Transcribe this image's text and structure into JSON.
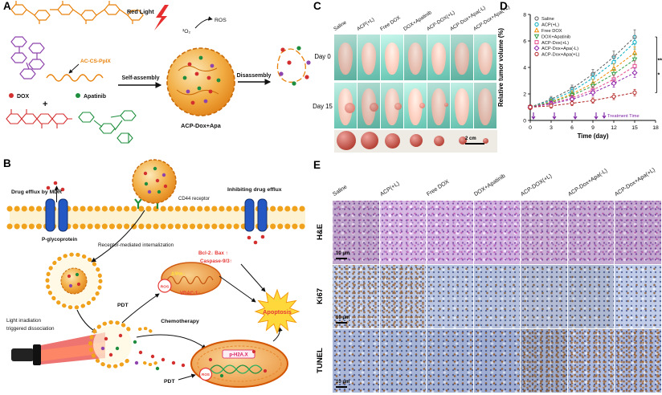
{
  "colors": {
    "polymer_orange": "#e8820c",
    "dox_red": "#d32f2f",
    "apatinib_green": "#1e8e3e",
    "purple": "#8e44ad",
    "membrane_yellow": "#f0a21d",
    "treatment_arrow_purple": "#7b1fa2"
  },
  "panelA": {
    "label": "A",
    "red_light": "Red Light",
    "singlet_oxygen": "³O₂",
    "ros": "ROS",
    "polymer_label": "AC-CS-PpIX",
    "dox_label": "DOX",
    "apatinib_label": "Apatinib",
    "plus": "+",
    "self_assembly": "Self-assembly",
    "disassembly": "Disassembly",
    "nanoparticle_label": "ACP-Dox+Apa"
  },
  "panelB": {
    "label": "B",
    "drug_efflux": "Drug efflux by MDR",
    "inhibiting_efflux": "Inhibiting drug efflux",
    "cd44": "CD44 receptor",
    "p_glycoprotein": "P-glycoprotein",
    "internalization": "Receptor-mediated internalization",
    "light_line1": "Light  irradiation",
    "light_line2": "triggered dissociation",
    "pdt": "PDT",
    "chemotherapy": "Chemotherapy",
    "ros": "ROS",
    "mito_potential": "ΔΨm↓",
    "vdac": "VDAC-1↑",
    "bcl2_bax": "Bcl-2↓ Bax ↑",
    "caspase": "Caspase-9/3↑",
    "ph2ax": "p-H2A.X",
    "apoptosis": "Apoptosis"
  },
  "panelC": {
    "label": "C",
    "groups": [
      "Saline",
      "ACP(+L)",
      "Free DOX",
      "DOX+Apatinib",
      "ACP-DOX(+L)",
      "ACP-Dox+Apa(-L)",
      "ACP-Dox+Apa(+L)"
    ],
    "rows": [
      "Day 0",
      "Day 15"
    ],
    "scale_bar": "2 cm"
  },
  "panelD": {
    "label": "D"
  },
  "chart_data": {
    "type": "line",
    "title": "",
    "xlabel": "Time (day)",
    "ylabel": "Relative tumor volume (%)",
    "xlim": [
      0,
      18
    ],
    "ylim": [
      0,
      8
    ],
    "xticks": [
      0,
      3,
      6,
      9,
      12,
      15,
      18
    ],
    "yticks": [
      0,
      2,
      4,
      6,
      8
    ],
    "grid": false,
    "legend_position": "top-left",
    "x": [
      0,
      3,
      6,
      9,
      12,
      15
    ],
    "series": [
      {
        "name": "Saline",
        "color": "#5a5a5a",
        "marker": "circle",
        "filled": false,
        "values": [
          1,
          1.6,
          2.4,
          3.5,
          4.8,
          6.3
        ]
      },
      {
        "name": "ACP(+L)",
        "color": "#00acc1",
        "marker": "circle",
        "filled": false,
        "values": [
          1,
          1.5,
          2.2,
          3.2,
          4.4,
          5.9
        ]
      },
      {
        "name": "Free DOX",
        "color": "#f08c00",
        "marker": "triangle",
        "filled": false,
        "values": [
          1,
          1.4,
          2.0,
          2.8,
          3.9,
          5.1
        ]
      },
      {
        "name": "DOX+Apatinib",
        "color": "#2e9e44",
        "marker": "triangle-down",
        "filled": false,
        "values": [
          1,
          1.35,
          1.9,
          2.6,
          3.5,
          4.6
        ]
      },
      {
        "name": "ACP-Dox(+L)",
        "color": "#e64a8b",
        "marker": "square",
        "filled": false,
        "values": [
          1,
          1.3,
          1.7,
          2.3,
          3.1,
          4.1
        ]
      },
      {
        "name": "ACP-Dox+Apa(-L)",
        "color": "#8e24aa",
        "marker": "diamond",
        "filled": false,
        "values": [
          1,
          1.25,
          1.6,
          2.1,
          2.8,
          3.6
        ]
      },
      {
        "name": "ACP-Dox+Apa(+L)",
        "color": "#b22222",
        "marker": "circle",
        "filled": false,
        "values": [
          1,
          1.1,
          1.3,
          1.5,
          1.8,
          2.1
        ]
      }
    ],
    "treatment_label": "Treatment Time",
    "treatment_days": [
      0,
      3,
      6,
      9
    ],
    "treatment_color": "#7b1fa2",
    "significance": [
      "**",
      "*"
    ]
  },
  "panelE": {
    "label": "E",
    "groups": [
      "Saline",
      "ACP(+L)",
      "Free DOX",
      "DOX+Apatinib",
      "ACP-DOX(+L)",
      "ACP-Dox+Apa(-L)",
      "ACP-Dox+Apa(+L)"
    ],
    "rows": [
      "H&E",
      "Ki67",
      "TUNEL"
    ],
    "scale_bar": "10 μm"
  }
}
